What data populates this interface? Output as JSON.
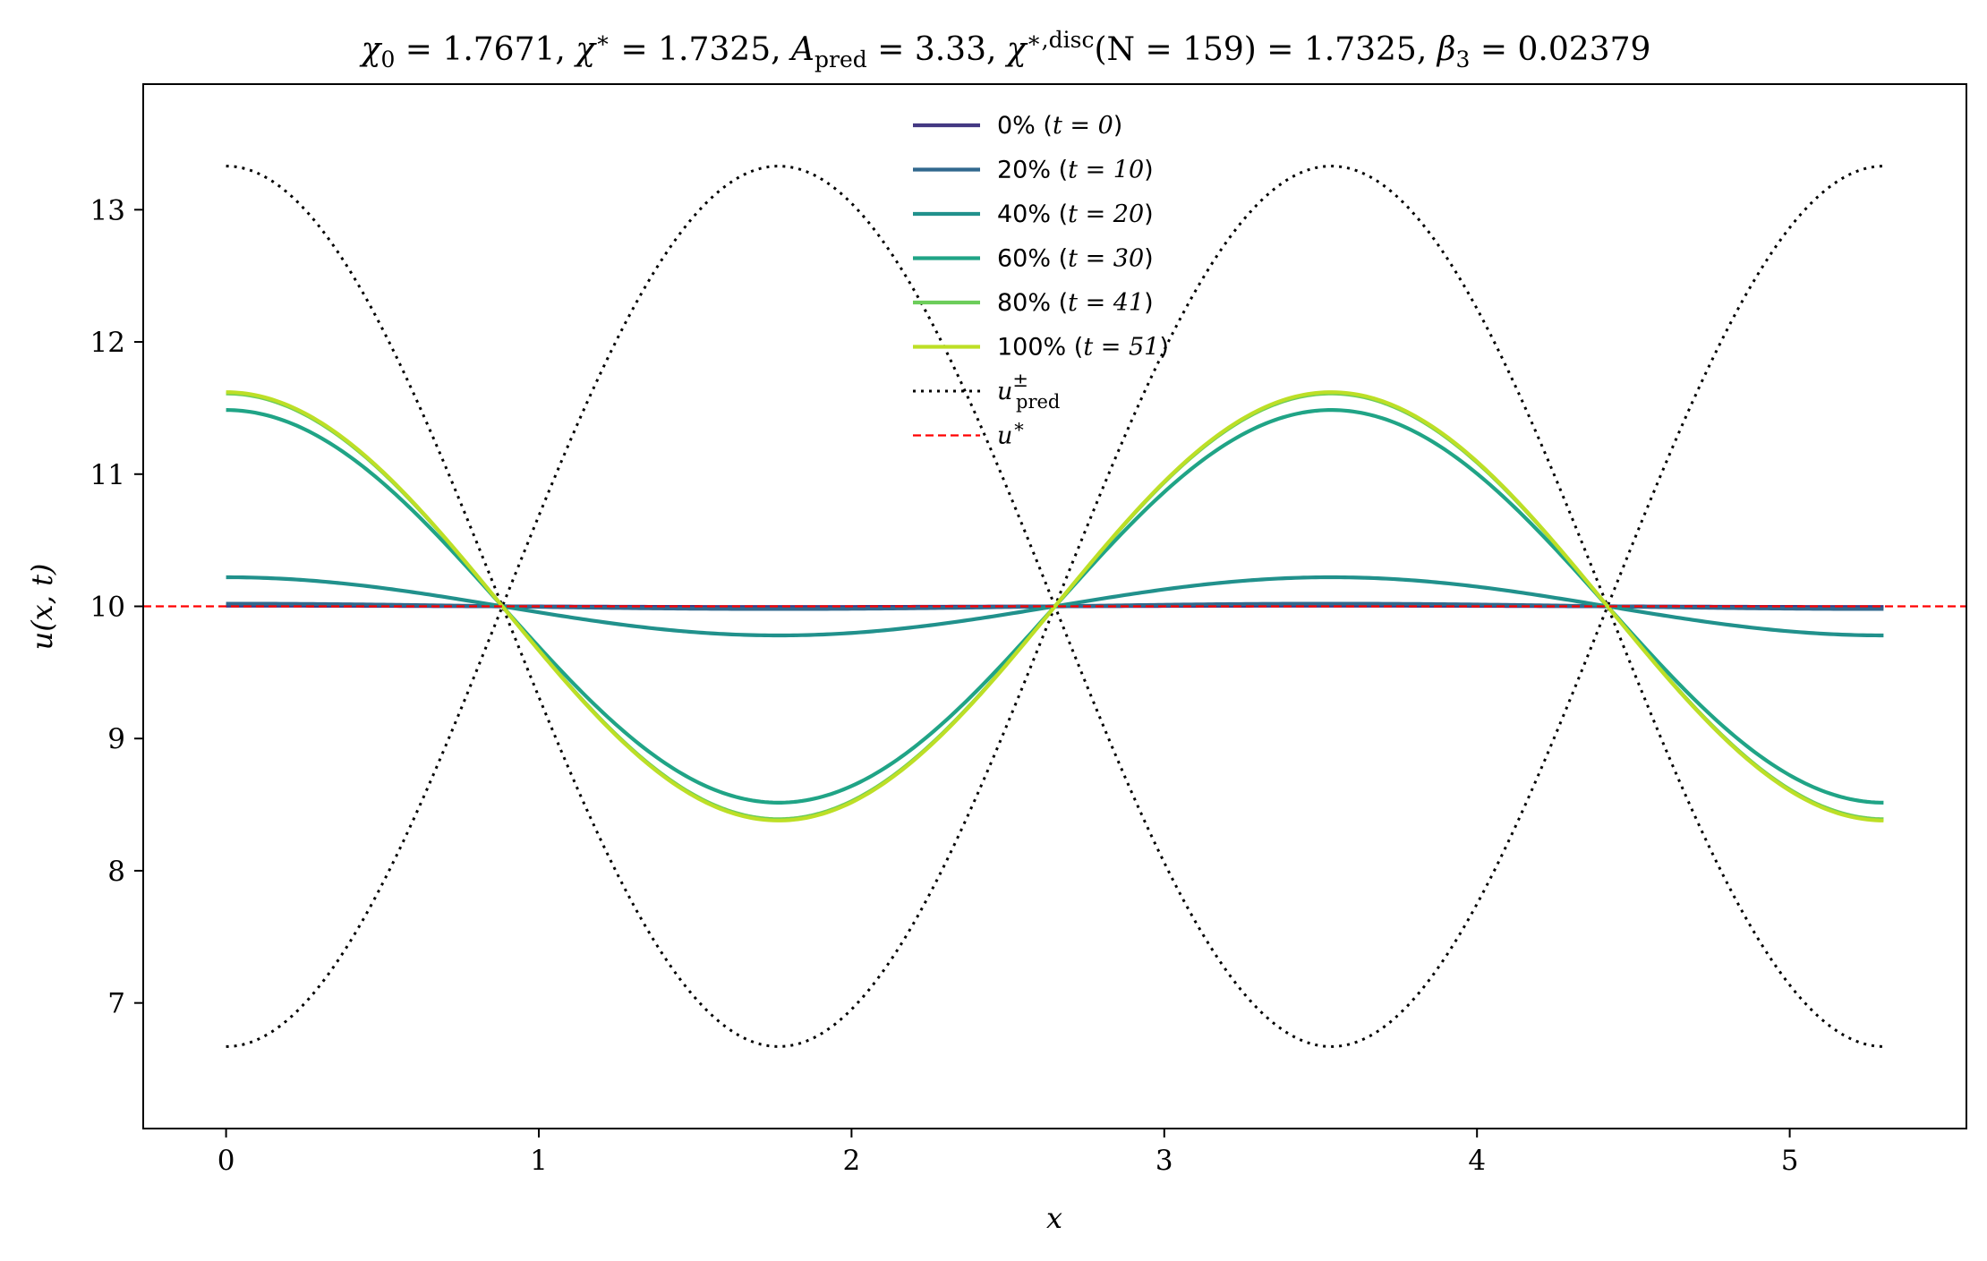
{
  "chart_data": {
    "type": "line",
    "title": "χ₀ = 1.7671,  χ* = 1.7325,  A_pred = 3.33,  χ*,disc(N = 159) = 1.7325,  β₃ = 0.02379",
    "title_parts": {
      "chi0": "χ",
      "chi0_sub": "0",
      "chi0_val": " = 1.7671,  ",
      "chistar": "χ",
      "chistar_sup": "∗",
      "chistar_val": " = 1.7325,  ",
      "apred": "A",
      "apred_sub": "pred",
      "apred_val": " = 3.33,  ",
      "chidisc": "χ",
      "chidisc_sup": "∗,disc",
      "chidisc_val": "(N = 159) = 1.7325,  ",
      "beta": "β",
      "beta_sub": "3",
      "beta_val": " = 0.02379"
    },
    "xlabel": "x",
    "ylabel": "u(x, t)",
    "xlim": [
      -0.265,
      5.565
    ],
    "ylim": [
      6.05,
      13.95
    ],
    "x_ticks": [
      0,
      1,
      2,
      3,
      4,
      5
    ],
    "y_ticks": [
      7,
      8,
      9,
      10,
      11,
      12,
      13
    ],
    "x_tick_labels": [
      "0",
      "1",
      "2",
      "3",
      "4",
      "5"
    ],
    "y_tick_labels": [
      "7",
      "8",
      "9",
      "10",
      "11",
      "12",
      "13"
    ],
    "grid": false,
    "legend_position": "top-center",
    "domain": [
      0,
      5.3
    ],
    "period": 3.534,
    "baseline": 10.0,
    "series": [
      {
        "name": "0% (t = 0)",
        "legend_pct": "0% (",
        "legend_t": "t = 0",
        "legend_close": ")",
        "amplitude": 0.005,
        "color": "#443983",
        "style": "solid"
      },
      {
        "name": "20% (t = 10)",
        "legend_pct": "20% (",
        "legend_t": "t = 10",
        "legend_close": ")",
        "amplitude": 0.02,
        "color": "#31688e",
        "style": "solid"
      },
      {
        "name": "40% (t = 20)",
        "legend_pct": "40% (",
        "legend_t": "t = 20",
        "legend_close": ")",
        "amplitude": 0.22,
        "color": "#21918c",
        "style": "solid"
      },
      {
        "name": "60% (t = 30)",
        "legend_pct": "60% (",
        "legend_t": "t = 30",
        "legend_close": ")",
        "amplitude": 1.485,
        "color": "#20a486",
        "style": "solid"
      },
      {
        "name": "80% (t = 41)",
        "legend_pct": "80% (",
        "legend_t": "t = 41",
        "legend_close": ")",
        "amplitude": 1.61,
        "color": "#6ccd5a",
        "style": "solid"
      },
      {
        "name": "100% (t = 51)",
        "legend_pct": "100% (",
        "legend_t": "t = 51",
        "legend_close": ")",
        "amplitude": 1.62,
        "color": "#bddf26",
        "style": "solid"
      }
    ],
    "reference_lines": [
      {
        "name": "u±pred",
        "label_base": "u",
        "label_sup": "±",
        "label_sub": "pred",
        "amplitude": 3.33,
        "color": "#000000",
        "style": "dotted"
      },
      {
        "name": "u*",
        "label_base": "u",
        "label_sup": "∗",
        "value": 10.0,
        "color": "#ff0000",
        "style": "dashed"
      }
    ]
  }
}
